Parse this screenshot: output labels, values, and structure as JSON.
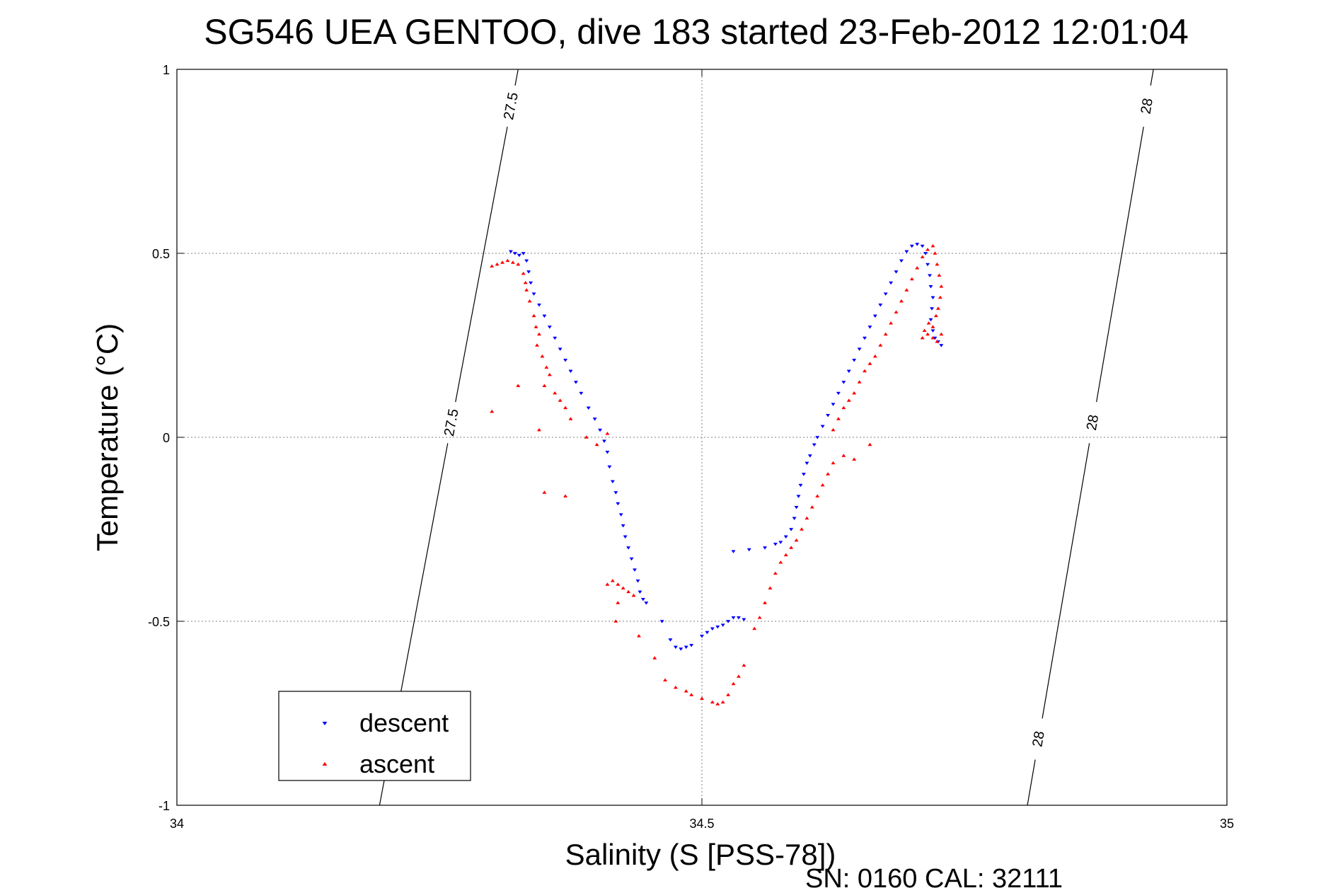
{
  "chart_data": {
    "type": "scatter",
    "title": "SG546 UEA GENTOO, dive 183 started 23-Feb-2012 12:01:04",
    "xlabel": "Salinity (S [PSS-78])",
    "ylabel": "Temperature (°C)",
    "xlim": [
      34,
      35
    ],
    "ylim": [
      -1,
      1
    ],
    "xticks": [
      "34",
      "34.5",
      "35"
    ],
    "yticks": [
      "1",
      "0.5",
      "0",
      "-0.5",
      "-1"
    ],
    "grid": true,
    "legend_position": "bottom-left",
    "footer": "SN: 0160  CAL: 32111",
    "isopycnals": [
      {
        "label": "27.5",
        "x_at_top": 34.325,
        "x_at_bottom": 34.193
      },
      {
        "label": "28",
        "x_at_top": 34.93,
        "x_at_bottom": 34.81
      }
    ],
    "series": [
      {
        "name": "descent",
        "color": "#0000ff",
        "marker": "down-triangle",
        "points": [
          [
            34.318,
            0.505
          ],
          [
            34.322,
            0.5
          ],
          [
            34.326,
            0.495
          ],
          [
            34.33,
            0.5
          ],
          [
            34.333,
            0.48
          ],
          [
            34.335,
            0.45
          ],
          [
            34.337,
            0.42
          ],
          [
            34.34,
            0.39
          ],
          [
            34.345,
            0.36
          ],
          [
            34.35,
            0.33
          ],
          [
            34.355,
            0.3
          ],
          [
            34.36,
            0.27
          ],
          [
            34.365,
            0.24
          ],
          [
            34.37,
            0.21
          ],
          [
            34.375,
            0.18
          ],
          [
            34.38,
            0.15
          ],
          [
            34.385,
            0.12
          ],
          [
            34.392,
            0.08
          ],
          [
            34.398,
            0.05
          ],
          [
            34.403,
            0.02
          ],
          [
            34.407,
            -0.01
          ],
          [
            34.41,
            -0.04
          ],
          [
            34.412,
            -0.08
          ],
          [
            34.415,
            -0.12
          ],
          [
            34.418,
            -0.15
          ],
          [
            34.42,
            -0.18
          ],
          [
            34.423,
            -0.21
          ],
          [
            34.425,
            -0.24
          ],
          [
            34.427,
            -0.27
          ],
          [
            34.43,
            -0.3
          ],
          [
            34.433,
            -0.33
          ],
          [
            34.436,
            -0.36
          ],
          [
            34.439,
            -0.39
          ],
          [
            34.441,
            -0.42
          ],
          [
            34.444,
            -0.44
          ],
          [
            34.447,
            -0.45
          ],
          [
            34.462,
            -0.5
          ],
          [
            34.47,
            -0.55
          ],
          [
            34.475,
            -0.57
          ],
          [
            34.48,
            -0.575
          ],
          [
            34.485,
            -0.57
          ],
          [
            34.49,
            -0.565
          ],
          [
            34.5,
            -0.54
          ],
          [
            34.505,
            -0.53
          ],
          [
            34.51,
            -0.52
          ],
          [
            34.515,
            -0.515
          ],
          [
            34.52,
            -0.51
          ],
          [
            34.525,
            -0.5
          ],
          [
            34.53,
            -0.49
          ],
          [
            34.535,
            -0.49
          ],
          [
            34.54,
            -0.495
          ],
          [
            34.53,
            -0.31
          ],
          [
            34.545,
            -0.305
          ],
          [
            34.56,
            -0.3
          ],
          [
            34.57,
            -0.29
          ],
          [
            34.575,
            -0.285
          ],
          [
            34.58,
            -0.27
          ],
          [
            34.585,
            -0.25
          ],
          [
            34.588,
            -0.22
          ],
          [
            34.59,
            -0.19
          ],
          [
            34.592,
            -0.16
          ],
          [
            34.594,
            -0.13
          ],
          [
            34.597,
            -0.1
          ],
          [
            34.6,
            -0.07
          ],
          [
            34.603,
            -0.05
          ],
          [
            34.607,
            -0.02
          ],
          [
            34.61,
            0.0
          ],
          [
            34.615,
            0.03
          ],
          [
            34.62,
            0.06
          ],
          [
            34.625,
            0.09
          ],
          [
            34.63,
            0.12
          ],
          [
            34.635,
            0.15
          ],
          [
            34.64,
            0.18
          ],
          [
            34.645,
            0.21
          ],
          [
            34.65,
            0.24
          ],
          [
            34.655,
            0.27
          ],
          [
            34.66,
            0.3
          ],
          [
            34.665,
            0.33
          ],
          [
            34.67,
            0.36
          ],
          [
            34.675,
            0.39
          ],
          [
            34.68,
            0.42
          ],
          [
            34.685,
            0.45
          ],
          [
            34.69,
            0.48
          ],
          [
            34.695,
            0.505
          ],
          [
            34.7,
            0.52
          ],
          [
            34.705,
            0.525
          ],
          [
            34.71,
            0.52
          ],
          [
            34.713,
            0.5
          ],
          [
            34.715,
            0.47
          ],
          [
            34.717,
            0.44
          ],
          [
            34.718,
            0.41
          ],
          [
            34.72,
            0.38
          ],
          [
            34.719,
            0.35
          ],
          [
            34.718,
            0.32
          ],
          [
            34.72,
            0.29
          ],
          [
            34.722,
            0.27
          ],
          [
            34.725,
            0.26
          ],
          [
            34.728,
            0.25
          ]
        ]
      },
      {
        "name": "ascent",
        "color": "#ff0000",
        "marker": "up-triangle",
        "points": [
          [
            34.3,
            0.465
          ],
          [
            34.305,
            0.47
          ],
          [
            34.31,
            0.475
          ],
          [
            34.315,
            0.48
          ],
          [
            34.32,
            0.475
          ],
          [
            34.325,
            0.47
          ],
          [
            34.33,
            0.445
          ],
          [
            34.332,
            0.42
          ],
          [
            34.333,
            0.4
          ],
          [
            34.336,
            0.37
          ],
          [
            34.34,
            0.33
          ],
          [
            34.342,
            0.3
          ],
          [
            34.345,
            0.28
          ],
          [
            34.343,
            0.25
          ],
          [
            34.348,
            0.22
          ],
          [
            34.352,
            0.19
          ],
          [
            34.355,
            0.17
          ],
          [
            34.35,
            0.14
          ],
          [
            34.36,
            0.12
          ],
          [
            34.365,
            0.1
          ],
          [
            34.37,
            0.08
          ],
          [
            34.375,
            0.05
          ],
          [
            34.345,
            0.02
          ],
          [
            34.325,
            0.14
          ],
          [
            34.3,
            0.07
          ],
          [
            34.35,
            -0.15
          ],
          [
            34.37,
            -0.16
          ],
          [
            34.39,
            0.0
          ],
          [
            34.4,
            -0.02
          ],
          [
            34.41,
            0.01
          ],
          [
            34.41,
            -0.4
          ],
          [
            34.415,
            -0.39
          ],
          [
            34.42,
            -0.4
          ],
          [
            34.425,
            -0.41
          ],
          [
            34.43,
            -0.42
          ],
          [
            34.435,
            -0.43
          ],
          [
            34.42,
            -0.45
          ],
          [
            34.418,
            -0.5
          ],
          [
            34.44,
            -0.54
          ],
          [
            34.455,
            -0.6
          ],
          [
            34.465,
            -0.66
          ],
          [
            34.475,
            -0.68
          ],
          [
            34.485,
            -0.69
          ],
          [
            34.49,
            -0.7
          ],
          [
            34.5,
            -0.71
          ],
          [
            34.51,
            -0.72
          ],
          [
            34.515,
            -0.725
          ],
          [
            34.52,
            -0.72
          ],
          [
            34.525,
            -0.7
          ],
          [
            34.53,
            -0.67
          ],
          [
            34.535,
            -0.65
          ],
          [
            34.54,
            -0.62
          ],
          [
            34.55,
            -0.52
          ],
          [
            34.555,
            -0.49
          ],
          [
            34.56,
            -0.45
          ],
          [
            34.565,
            -0.41
          ],
          [
            34.57,
            -0.37
          ],
          [
            34.575,
            -0.34
          ],
          [
            34.58,
            -0.32
          ],
          [
            34.585,
            -0.3
          ],
          [
            34.59,
            -0.28
          ],
          [
            34.595,
            -0.25
          ],
          [
            34.6,
            -0.22
          ],
          [
            34.605,
            -0.19
          ],
          [
            34.61,
            -0.16
          ],
          [
            34.615,
            -0.13
          ],
          [
            34.62,
            -0.1
          ],
          [
            34.625,
            -0.07
          ],
          [
            34.635,
            -0.05
          ],
          [
            34.645,
            -0.06
          ],
          [
            34.66,
            -0.02
          ],
          [
            34.625,
            0.02
          ],
          [
            34.63,
            0.05
          ],
          [
            34.635,
            0.08
          ],
          [
            34.64,
            0.1
          ],
          [
            34.645,
            0.12
          ],
          [
            34.65,
            0.15
          ],
          [
            34.655,
            0.18
          ],
          [
            34.66,
            0.2
          ],
          [
            34.665,
            0.22
          ],
          [
            34.67,
            0.25
          ],
          [
            34.675,
            0.28
          ],
          [
            34.68,
            0.31
          ],
          [
            34.685,
            0.34
          ],
          [
            34.69,
            0.37
          ],
          [
            34.695,
            0.4
          ],
          [
            34.7,
            0.43
          ],
          [
            34.705,
            0.46
          ],
          [
            34.71,
            0.49
          ],
          [
            34.715,
            0.51
          ],
          [
            34.72,
            0.52
          ],
          [
            34.722,
            0.5
          ],
          [
            34.724,
            0.47
          ],
          [
            34.726,
            0.44
          ],
          [
            34.728,
            0.41
          ],
          [
            34.727,
            0.38
          ],
          [
            34.725,
            0.35
          ],
          [
            34.723,
            0.33
          ],
          [
            34.72,
            0.3
          ],
          [
            34.715,
            0.28
          ],
          [
            34.71,
            0.27
          ],
          [
            34.712,
            0.29
          ],
          [
            34.716,
            0.31
          ],
          [
            34.72,
            0.27
          ],
          [
            34.724,
            0.26
          ],
          [
            34.728,
            0.28
          ]
        ]
      }
    ]
  }
}
